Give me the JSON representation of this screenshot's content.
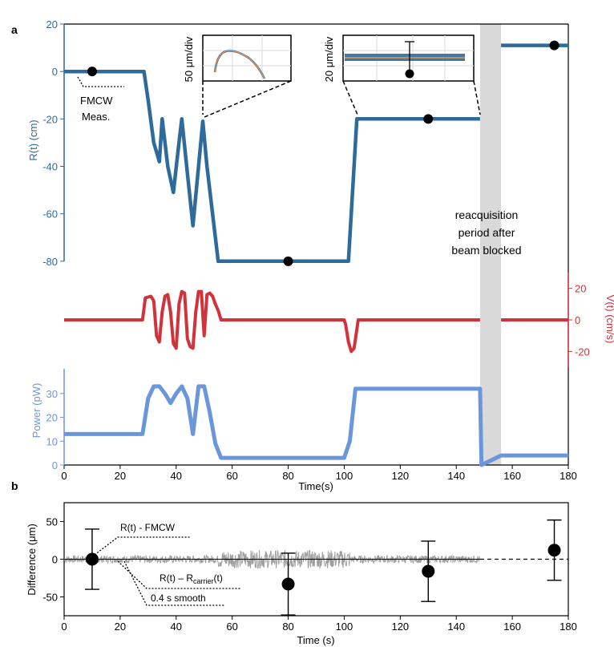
{
  "panel_labels": {
    "a": "a",
    "b": "b"
  },
  "colors": {
    "range": "#2e6a9a",
    "velocity": "#d1333a",
    "power": "#6a97dc",
    "band": "#d9d9d9",
    "inset_orange": "#f0954a",
    "gray_trace": "#9e9e9e",
    "black": "#000000"
  },
  "annotations": {
    "fmcw": [
      "FMCW",
      "Meas."
    ],
    "reacq": [
      "reacquisition",
      "period after",
      "beam blocked"
    ],
    "inset1_label": "50 μm/div",
    "inset2_label": "20 μm/div",
    "b_r_fmcw": "R(t) - FMCW",
    "b_r_carrier_main": "R(t) – R",
    "b_r_carrier_sub": "carrier",
    "b_r_carrier_tail": "(t)",
    "b_smooth": "0.4 s smooth"
  },
  "chart_data": [
    {
      "type": "line",
      "panel": "a",
      "xlabel": "Time(s)",
      "xlim": [
        0,
        180
      ],
      "x_ticks": [
        0,
        20,
        40,
        60,
        80,
        100,
        120,
        140,
        160,
        180
      ],
      "reacquisition_band": [
        148.5,
        156
      ],
      "range": {
        "name": "R(t)",
        "ylabel": "R(t) (cm)",
        "ylim": [
          -100,
          20
        ],
        "y_ticks": [
          20,
          0,
          -20,
          -40,
          -60,
          -80
        ],
        "x": [
          0,
          28.5,
          30,
          32,
          34,
          35,
          37,
          39,
          41,
          42,
          44,
          46,
          48,
          49.5,
          51,
          53,
          55,
          60,
          80,
          100,
          101.5,
          104.5,
          105,
          130,
          148.5
        ],
        "y": [
          0,
          0,
          -12,
          -30,
          -38,
          -20,
          -40,
          -51,
          -30,
          -20,
          -43,
          -65,
          -40,
          -21,
          -40,
          -60,
          -80,
          -80,
          -80,
          -80,
          -80,
          -20,
          -20,
          -20,
          -20
        ],
        "x2": [
          156,
          180
        ],
        "y2": [
          11,
          11
        ],
        "fmcw_points": {
          "x": [
            10,
            80,
            130,
            175
          ],
          "y": [
            0,
            -80,
            -20,
            11
          ]
        }
      },
      "velocity": {
        "name": "V(t)",
        "ylabel": "V(t) (cm/s)",
        "ylim": [
          -30,
          30
        ],
        "y_ticks": [
          20,
          0,
          -20
        ],
        "x": [
          0,
          28,
          29,
          31,
          32,
          33,
          34,
          35,
          36,
          37,
          38,
          39,
          40,
          41,
          42,
          43,
          44,
          45,
          46,
          47,
          48,
          49,
          50,
          51,
          52,
          53,
          54,
          55,
          56,
          100,
          100.5,
          101.5,
          102.5,
          103.5,
          104.5,
          105,
          148.5
        ],
        "y": [
          0,
          0,
          14,
          15,
          12,
          -10,
          -14,
          5,
          15,
          16,
          5,
          -15,
          -18,
          10,
          18,
          17,
          -12,
          -17,
          -18,
          5,
          18,
          18,
          -10,
          16,
          17,
          15,
          10,
          6,
          0,
          0,
          -3,
          -14,
          -20,
          -18,
          -6,
          0,
          0
        ],
        "x2": [
          156,
          180
        ],
        "y2": [
          0,
          0
        ]
      },
      "power": {
        "name": "Power",
        "ylabel": "Power (pW)",
        "ylim": [
          0,
          35
        ],
        "y_ticks": [
          30,
          20,
          10,
          0
        ],
        "x": [
          0,
          28,
          30,
          32,
          34,
          36,
          38,
          40,
          42,
          44,
          46,
          48,
          50,
          52,
          54,
          56,
          58,
          100,
          102,
          104,
          105,
          148.5,
          149,
          156,
          180
        ],
        "y": [
          13,
          13,
          28,
          33,
          33,
          30,
          26,
          30,
          33,
          28,
          13,
          33,
          33,
          22,
          9,
          3,
          3,
          3,
          10,
          32,
          32,
          32,
          0,
          4,
          4
        ]
      },
      "inset_1": {
        "label": "50 μm/div"
      },
      "inset_2": {
        "label": "20 μm/div"
      }
    },
    {
      "type": "scatter",
      "panel": "b",
      "xlabel": "Time (s)",
      "ylabel": "Difference (μm)",
      "xlim": [
        0,
        180
      ],
      "ylim": [
        -75,
        75
      ],
      "x_ticks": [
        0,
        20,
        40,
        60,
        80,
        100,
        120,
        140,
        160,
        180
      ],
      "y_ticks": [
        50,
        0,
        -50
      ],
      "points": [
        {
          "x": 10,
          "y": 0,
          "err": 40
        },
        {
          "x": 80,
          "y": -33,
          "err": 41
        },
        {
          "x": 130,
          "y": -16,
          "err": 40
        },
        {
          "x": 175,
          "y": 12,
          "err": 40
        }
      ],
      "noise": {
        "name": "R(t) – Rcarrier(t)",
        "segments": [
          {
            "x0": 0,
            "x1": 55,
            "amplitude": 5
          },
          {
            "x0": 55,
            "x1": 102,
            "amplitude": 12
          },
          {
            "x0": 102,
            "x1": 148.5,
            "amplitude": 5
          }
        ],
        "smooth_label": "0.4 s smooth",
        "extension": {
          "x0": 148.5,
          "x1": 180
        }
      }
    }
  ]
}
